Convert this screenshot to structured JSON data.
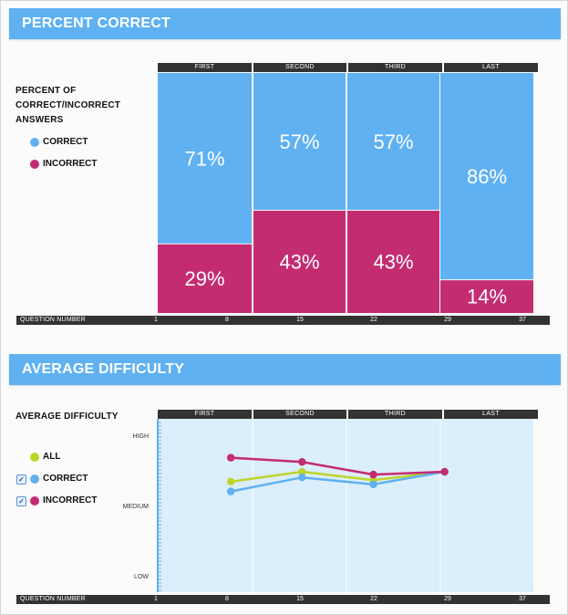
{
  "colors": {
    "correct": "#5fb1f2",
    "incorrect": "#c42c72",
    "all": "#bdd42a",
    "header": "#5fb1f2",
    "dark_bar": "#333333",
    "plot_bg": "#dbeefb"
  },
  "percent_section": {
    "title": "PERCENT CORRECT",
    "side_title": "PERCENT OF\nCORRECT/INCORRECT\nANSWERS",
    "legend": [
      {
        "label": "CORRECT",
        "color": "#5fb1f2"
      },
      {
        "label": "INCORRECT",
        "color": "#c42c72"
      }
    ],
    "phases": [
      "FIRST",
      "SECOND",
      "THIRD",
      "LAST"
    ],
    "axis_label": "QUESTION NUMBER",
    "axis_ticks": [
      "1",
      "8",
      "15",
      "22",
      "29",
      "37"
    ]
  },
  "difficulty_section": {
    "title": "AVERAGE DIFFICULTY",
    "side_title": "AVERAGE DIFFICULTY",
    "legend": [
      {
        "label": "ALL",
        "color": "#bdd42a",
        "checkbox": false
      },
      {
        "label": "CORRECT",
        "color": "#5fb1f2",
        "checkbox": true
      },
      {
        "label": "INCORRECT",
        "color": "#c42c72",
        "checkbox": true
      }
    ],
    "phases": [
      "FIRST",
      "SECOND",
      "THIRD",
      "LAST"
    ],
    "y_labels": [
      "HIGH",
      "MEDIUM",
      "LOW"
    ],
    "axis_label": "QUESTION NUMBER",
    "axis_ticks": [
      "1",
      "8",
      "15",
      "22",
      "29",
      "37"
    ]
  },
  "chart_data": [
    {
      "type": "bar",
      "title": "PERCENT CORRECT",
      "subtitle": "PERCENT OF CORRECT/INCORRECT ANSWERS",
      "categories": [
        "FIRST",
        "SECOND",
        "THIRD",
        "LAST"
      ],
      "series": [
        {
          "name": "CORRECT",
          "values": [
            71,
            57,
            57,
            86
          ]
        },
        {
          "name": "INCORRECT",
          "values": [
            29,
            43,
            43,
            14
          ]
        }
      ],
      "value_labels": {
        "CORRECT": [
          "71%",
          "57%",
          "57%",
          "86%"
        ],
        "INCORRECT": [
          "29%",
          "43%",
          "43%",
          "14%"
        ]
      },
      "stacked": true,
      "xlabel": "QUESTION NUMBER",
      "x_ticks": [
        "1",
        "8",
        "15",
        "22",
        "29",
        "37"
      ],
      "ylim": [
        0,
        100
      ]
    },
    {
      "type": "line",
      "title": "AVERAGE DIFFICULTY",
      "categories": [
        "FIRST",
        "SECOND",
        "THIRD",
        "LAST"
      ],
      "x": [
        8,
        15,
        22,
        29
      ],
      "ylim": [
        0,
        1
      ],
      "y_tick_labels": [
        "LOW",
        "MEDIUM",
        "HIGH"
      ],
      "series": [
        {
          "name": "ALL",
          "values": [
            0.67,
            0.74,
            0.68,
            0.74
          ]
        },
        {
          "name": "CORRECT",
          "values": [
            0.6,
            0.7,
            0.65,
            0.74
          ]
        },
        {
          "name": "INCORRECT",
          "values": [
            0.84,
            0.81,
            0.72,
            0.74
          ]
        }
      ],
      "xlabel": "QUESTION NUMBER",
      "x_ticks": [
        "1",
        "8",
        "15",
        "22",
        "29",
        "37"
      ],
      "grid": true
    }
  ]
}
